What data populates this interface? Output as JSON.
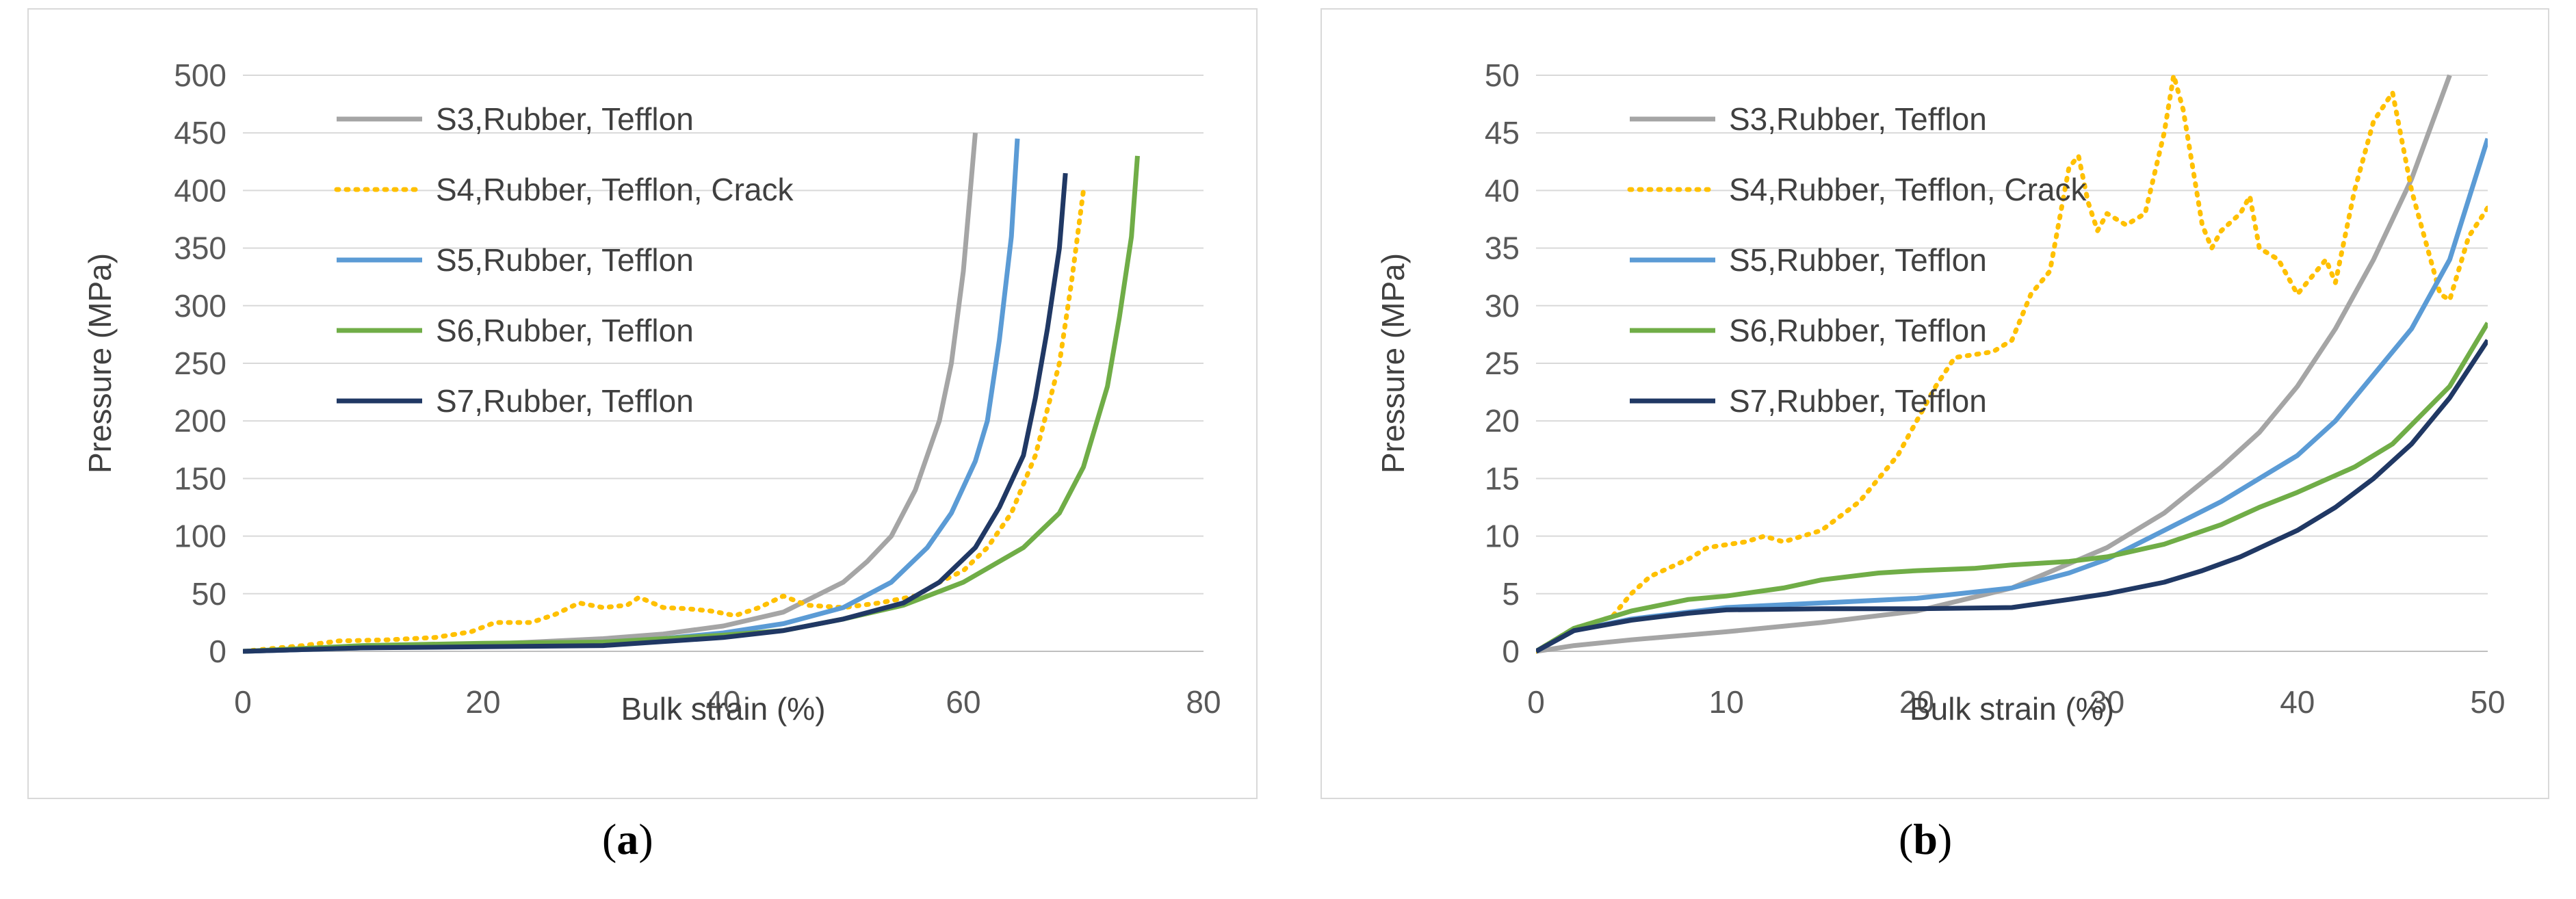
{
  "chart_data": [
    {
      "type": "line",
      "panel": "a",
      "caption": "a",
      "xlabel": "Bulk strain (%)",
      "ylabel": "Pressure (MPa)",
      "xlim": [
        0,
        80
      ],
      "ylim": [
        0,
        500
      ],
      "xticks": [
        0,
        20,
        40,
        60,
        80
      ],
      "yticks": [
        0,
        50,
        100,
        150,
        200,
        250,
        300,
        350,
        400,
        450,
        500
      ],
      "grid": "horizontal",
      "legend_position": "top-left",
      "series": [
        {
          "name": "S3,Rubber, Tefflon",
          "color": "#A5A5A5",
          "style": "solid",
          "points": [
            [
              0,
              0
            ],
            [
              10,
              3
            ],
            [
              20,
              6
            ],
            [
              30,
              11
            ],
            [
              35,
              15
            ],
            [
              40,
              22
            ],
            [
              45,
              34
            ],
            [
              50,
              60
            ],
            [
              52,
              78
            ],
            [
              54,
              100
            ],
            [
              56,
              140
            ],
            [
              58,
              200
            ],
            [
              59,
              250
            ],
            [
              60,
              330
            ],
            [
              60.5,
              390
            ],
            [
              61,
              450
            ]
          ]
        },
        {
          "name": "S4,Rubber, Tefflon, Crack",
          "color": "#FFC000",
          "style": "dotted",
          "points": [
            [
              0,
              0
            ],
            [
              5,
              5
            ],
            [
              8,
              9
            ],
            [
              12,
              10
            ],
            [
              16,
              12
            ],
            [
              19,
              17
            ],
            [
              21,
              25
            ],
            [
              24,
              25
            ],
            [
              26,
              32
            ],
            [
              28,
              42
            ],
            [
              30,
              38
            ],
            [
              32,
              40
            ],
            [
              33,
              47
            ],
            [
              35,
              38
            ],
            [
              37,
              37
            ],
            [
              39,
              35
            ],
            [
              41,
              31
            ],
            [
              43,
              38
            ],
            [
              45,
              48
            ],
            [
              47,
              40
            ],
            [
              50,
              38
            ],
            [
              53,
              42
            ],
            [
              56,
              48
            ],
            [
              58,
              60
            ],
            [
              60,
              70
            ],
            [
              62,
              90
            ],
            [
              64,
              120
            ],
            [
              66,
              170
            ],
            [
              68,
              250
            ],
            [
              69,
              320
            ],
            [
              70,
              400
            ]
          ]
        },
        {
          "name": "S5,Rubber, Tefflon",
          "color": "#5B9BD5",
          "style": "solid",
          "points": [
            [
              0,
              0
            ],
            [
              10,
              3
            ],
            [
              20,
              5
            ],
            [
              30,
              8
            ],
            [
              35,
              11
            ],
            [
              40,
              16
            ],
            [
              45,
              24
            ],
            [
              50,
              38
            ],
            [
              54,
              60
            ],
            [
              57,
              90
            ],
            [
              59,
              120
            ],
            [
              61,
              165
            ],
            [
              62,
              200
            ],
            [
              63,
              270
            ],
            [
              64,
              360
            ],
            [
              64.5,
              445
            ]
          ]
        },
        {
          "name": "S6,Rubber, Tefflon",
          "color": "#70AD47",
          "style": "solid",
          "points": [
            [
              0,
              0
            ],
            [
              10,
              5
            ],
            [
              20,
              7
            ],
            [
              30,
              8
            ],
            [
              40,
              14
            ],
            [
              45,
              18
            ],
            [
              50,
              28
            ],
            [
              55,
              40
            ],
            [
              60,
              60
            ],
            [
              65,
              90
            ],
            [
              68,
              120
            ],
            [
              70,
              160
            ],
            [
              72,
              230
            ],
            [
              73,
              290
            ],
            [
              74,
              360
            ],
            [
              74.5,
              430
            ]
          ]
        },
        {
          "name": "S7,Rubber, Tefflon",
          "color": "#203864",
          "style": "solid",
          "points": [
            [
              0,
              0
            ],
            [
              10,
              3
            ],
            [
              20,
              4
            ],
            [
              30,
              5
            ],
            [
              40,
              12
            ],
            [
              45,
              18
            ],
            [
              50,
              28
            ],
            [
              55,
              42
            ],
            [
              58,
              60
            ],
            [
              61,
              90
            ],
            [
              63,
              125
            ],
            [
              65,
              170
            ],
            [
              66,
              220
            ],
            [
              67,
              280
            ],
            [
              68,
              350
            ],
            [
              68.5,
              415
            ]
          ]
        }
      ]
    },
    {
      "type": "line",
      "panel": "b",
      "caption": "b",
      "xlabel": "Bulk strain (%)",
      "ylabel": "Pressure (MPa)",
      "xlim": [
        0,
        50
      ],
      "ylim": [
        0,
        50
      ],
      "xticks": [
        0,
        10,
        20,
        30,
        40,
        50
      ],
      "yticks": [
        0,
        5,
        10,
        15,
        20,
        25,
        30,
        35,
        40,
        45,
        50
      ],
      "grid": "horizontal",
      "legend_position": "top-left",
      "series": [
        {
          "name": "S3,Rubber, Tefflon",
          "color": "#A5A5A5",
          "style": "solid",
          "points": [
            [
              0,
              0
            ],
            [
              2,
              0.5
            ],
            [
              5,
              1
            ],
            [
              10,
              1.7
            ],
            [
              15,
              2.5
            ],
            [
              20,
              3.5
            ],
            [
              25,
              5.5
            ],
            [
              30,
              9
            ],
            [
              33,
              12
            ],
            [
              36,
              16
            ],
            [
              38,
              19
            ],
            [
              40,
              23
            ],
            [
              42,
              28
            ],
            [
              44,
              34
            ],
            [
              46,
              41
            ],
            [
              48,
              50
            ]
          ]
        },
        {
          "name": "S4,Rubber, Tefflon, Crack",
          "color": "#FFC000",
          "style": "dotted",
          "points": [
            [
              0,
              0
            ],
            [
              2,
              2
            ],
            [
              4,
              3
            ],
            [
              5,
              5
            ],
            [
              6,
              6.5
            ],
            [
              8,
              8
            ],
            [
              9,
              9
            ],
            [
              11,
              9.5
            ],
            [
              12,
              10
            ],
            [
              13,
              9.5
            ],
            [
              14,
              10
            ],
            [
              15,
              10.5
            ],
            [
              17,
              13
            ],
            [
              18,
              15
            ],
            [
              19,
              17
            ],
            [
              20,
              20
            ],
            [
              21,
              23
            ],
            [
              22,
              25.5
            ],
            [
              24,
              26
            ],
            [
              25,
              27
            ],
            [
              26,
              31
            ],
            [
              27,
              33
            ],
            [
              28,
              42
            ],
            [
              28.5,
              43
            ],
            [
              29,
              39
            ],
            [
              29.5,
              36.5
            ],
            [
              30,
              38
            ],
            [
              31,
              37
            ],
            [
              32,
              38
            ],
            [
              33,
              45
            ],
            [
              33.5,
              50
            ],
            [
              34,
              47
            ],
            [
              35,
              37
            ],
            [
              35.5,
              35
            ],
            [
              36,
              36.5
            ],
            [
              37,
              38
            ],
            [
              37.5,
              39.5
            ],
            [
              38,
              35
            ],
            [
              39,
              34
            ],
            [
              40,
              31
            ],
            [
              41,
              33
            ],
            [
              41.5,
              34
            ],
            [
              42,
              32
            ],
            [
              43,
              40
            ],
            [
              44,
              46
            ],
            [
              45,
              48.5
            ],
            [
              46,
              40
            ],
            [
              47,
              34
            ],
            [
              47.5,
              31
            ],
            [
              48,
              30.5
            ],
            [
              49,
              36
            ],
            [
              50,
              38.5
            ]
          ]
        },
        {
          "name": "S5,Rubber, Tefflon",
          "color": "#5B9BD5",
          "style": "solid",
          "points": [
            [
              0,
              0
            ],
            [
              2,
              1.8
            ],
            [
              5,
              2.8
            ],
            [
              10,
              3.8
            ],
            [
              15,
              4.2
            ],
            [
              20,
              4.6
            ],
            [
              25,
              5.5
            ],
            [
              28,
              6.8
            ],
            [
              30,
              8
            ],
            [
              33,
              10.5
            ],
            [
              36,
              13
            ],
            [
              38,
              15
            ],
            [
              40,
              17
            ],
            [
              42,
              20
            ],
            [
              44,
              24
            ],
            [
              46,
              28
            ],
            [
              48,
              34
            ],
            [
              50,
              44.5
            ]
          ]
        },
        {
          "name": "S6,Rubber, Tefflon",
          "color": "#70AD47",
          "style": "solid",
          "points": [
            [
              0,
              0
            ],
            [
              2,
              2
            ],
            [
              5,
              3.5
            ],
            [
              8,
              4.5
            ],
            [
              10,
              4.8
            ],
            [
              13,
              5.5
            ],
            [
              15,
              6.2
            ],
            [
              18,
              6.8
            ],
            [
              20,
              7
            ],
            [
              23,
              7.2
            ],
            [
              25,
              7.5
            ],
            [
              28,
              7.8
            ],
            [
              30,
              8.2
            ],
            [
              33,
              9.3
            ],
            [
              36,
              11
            ],
            [
              38,
              12.5
            ],
            [
              40,
              13.8
            ],
            [
              43,
              16
            ],
            [
              45,
              18
            ],
            [
              48,
              23
            ],
            [
              50,
              28.5
            ]
          ]
        },
        {
          "name": "S7,Rubber, Tefflon",
          "color": "#203864",
          "style": "solid",
          "points": [
            [
              0,
              0
            ],
            [
              2,
              1.8
            ],
            [
              5,
              2.7
            ],
            [
              8,
              3.3
            ],
            [
              10,
              3.6
            ],
            [
              15,
              3.7
            ],
            [
              20,
              3.7
            ],
            [
              25,
              3.8
            ],
            [
              28,
              4.5
            ],
            [
              30,
              5
            ],
            [
              33,
              6
            ],
            [
              35,
              7
            ],
            [
              37,
              8.2
            ],
            [
              40,
              10.5
            ],
            [
              42,
              12.5
            ],
            [
              44,
              15
            ],
            [
              46,
              18
            ],
            [
              48,
              22
            ],
            [
              50,
              27
            ]
          ]
        }
      ]
    }
  ]
}
